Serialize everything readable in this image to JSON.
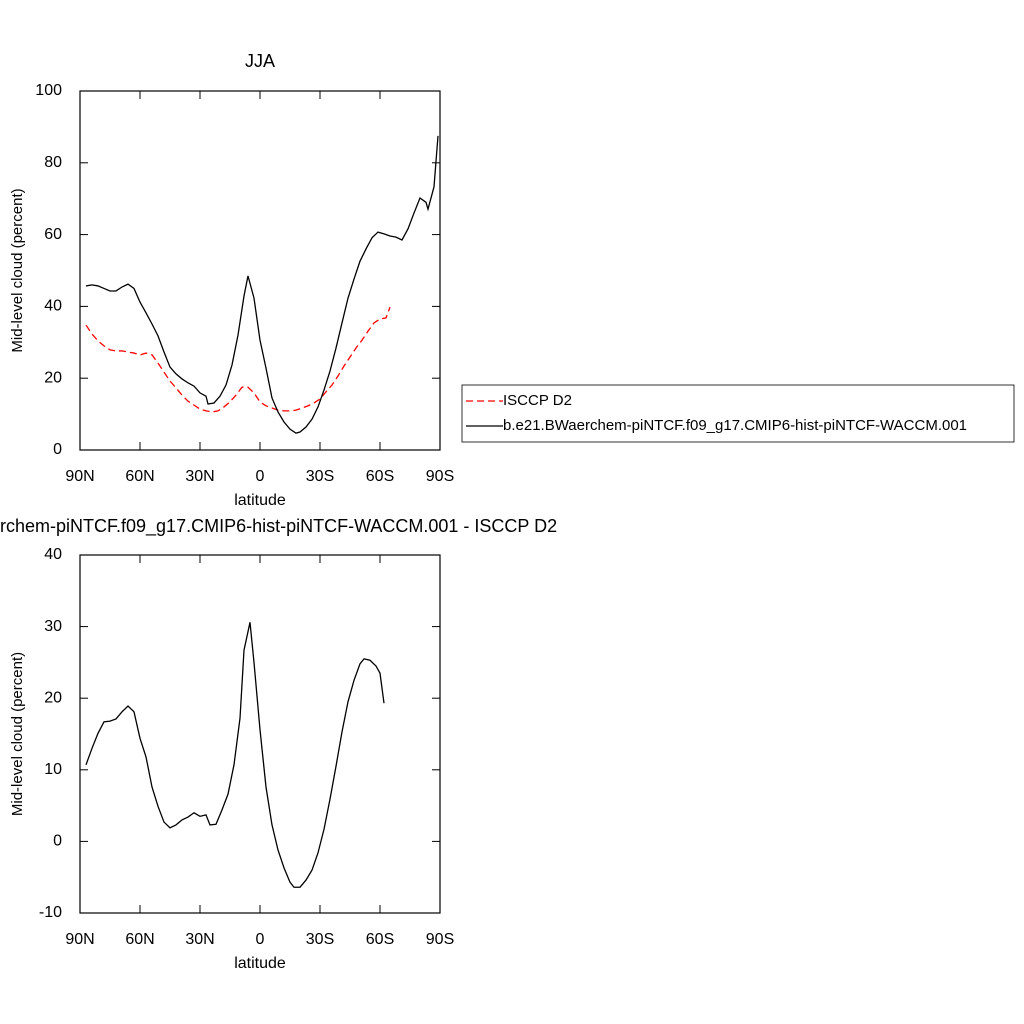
{
  "chart_data": [
    {
      "type": "line",
      "title": "JJA",
      "xlabel": "latitude",
      "ylabel": "Mid-level cloud (percent)",
      "xlim": [
        90,
        -90
      ],
      "ylim": [
        0,
        100
      ],
      "xticks": [
        {
          "value": 90,
          "label": "90N"
        },
        {
          "value": 60,
          "label": "60N"
        },
        {
          "value": 30,
          "label": "30N"
        },
        0,
        {
          "value": -30,
          "label": "30S"
        },
        {
          "value": -60,
          "label": "60S"
        },
        {
          "value": -90,
          "label": "90S"
        }
      ],
      "yticks": [
        0,
        20,
        40,
        60,
        80,
        100
      ],
      "series": [
        {
          "name": "ISCCP D2",
          "color": "#ff0000",
          "dash": true,
          "x": [
            87,
            84,
            81,
            78,
            75,
            72,
            69,
            66,
            63,
            60,
            57,
            54,
            51,
            48,
            45,
            42,
            39,
            36,
            33,
            30,
            27,
            24,
            21,
            18,
            15,
            12,
            9,
            6,
            3,
            0,
            -3,
            -6,
            -9,
            -12,
            -15,
            -18,
            -21,
            -24,
            -27,
            -30,
            -33,
            -36,
            -39,
            -42,
            -45,
            -48,
            -51,
            -54,
            -57,
            -60,
            -63,
            -65
          ],
          "values": [
            34.8,
            32.3,
            30.4,
            29,
            27.9,
            27.6,
            27.6,
            27.3,
            27,
            26.5,
            27,
            26.5,
            24.2,
            21.7,
            19.2,
            17.3,
            15.3,
            13.6,
            12.5,
            11.4,
            10.9,
            10.6,
            10.9,
            12,
            13.4,
            15.3,
            17.5,
            17.5,
            15.9,
            13.4,
            12.3,
            11.7,
            11.1,
            10.9,
            10.9,
            11.1,
            11.7,
            12.3,
            13.1,
            14.2,
            16.2,
            18.1,
            20.6,
            23.4,
            25.9,
            28.4,
            30.6,
            33.1,
            35.4,
            36.5,
            36.8,
            39.8
          ]
        },
        {
          "name": "b.e21.BWaerchem-piNTCF.f09_g17.CMIP6-hist-piNTCF-WACCM.001",
          "color": "#000000",
          "dash": false,
          "x": [
            87,
            84,
            81,
            78,
            75,
            72,
            69,
            66,
            63,
            60,
            57,
            54,
            51,
            48,
            45,
            42,
            39,
            36,
            33,
            30,
            27,
            26,
            23,
            20,
            17,
            14,
            11,
            8,
            6,
            3,
            0,
            -3,
            -6,
            -9,
            -12,
            -15,
            -18,
            -20,
            -23,
            -26,
            -29,
            -32,
            -35,
            -38,
            -41,
            -44,
            -47,
            -50,
            -53,
            -56,
            -59,
            -62,
            -65,
            -68,
            -71,
            -74,
            -77,
            -80,
            -83,
            -84,
            -87,
            -89
          ],
          "values": [
            45.7,
            46,
            45.7,
            45,
            44.3,
            44.3,
            45.4,
            46.2,
            45,
            41.2,
            38.2,
            35.1,
            31.8,
            27.3,
            23.1,
            21.2,
            19.8,
            18.7,
            17.8,
            15.9,
            15,
            12.8,
            13.1,
            15,
            18.1,
            23.7,
            32,
            42.9,
            48.5,
            42.3,
            30.6,
            22.8,
            14.5,
            10.6,
            7.8,
            5.8,
            4.7,
            5,
            6.4,
            8.6,
            12,
            16.7,
            22,
            28.4,
            35.4,
            42.3,
            47.6,
            52.6,
            56,
            59.1,
            60.7,
            60.2,
            59.6,
            59.3,
            58.5,
            61.6,
            66,
            70.2,
            69,
            67.1,
            73.3,
            87.5
          ]
        }
      ]
    },
    {
      "type": "line",
      "title": "rchem-piNTCF.f09_g17.CMIP6-hist-piNTCF-WACCM.001 - ISCCP D2",
      "xlabel": "latitude",
      "ylabel": "Mid-level cloud (percent)",
      "xlim": [
        90,
        -90
      ],
      "ylim": [
        -10,
        40
      ],
      "xticks": [
        {
          "value": 90,
          "label": "90N"
        },
        {
          "value": 60,
          "label": "60N"
        },
        {
          "value": 30,
          "label": "30N"
        },
        0,
        {
          "value": -30,
          "label": "30S"
        },
        {
          "value": -60,
          "label": "60S"
        },
        {
          "value": -90,
          "label": "90S"
        }
      ],
      "yticks": [
        -10,
        0,
        10,
        20,
        30,
        40
      ],
      "series": [
        {
          "color": "#000000",
          "dash": false,
          "x": [
            87,
            84,
            81,
            78,
            75,
            72,
            69,
            66,
            63,
            60,
            57,
            54,
            51,
            48,
            45,
            42,
            39,
            36,
            33,
            30,
            27,
            25,
            22,
            19,
            16,
            13,
            10,
            8,
            5,
            3,
            0,
            -3,
            -6,
            -9,
            -12,
            -15,
            -17,
            -20,
            -23,
            -26,
            -29,
            -32,
            -35,
            -38,
            -41,
            -44,
            -47,
            -50,
            -52,
            -55,
            -58,
            -60,
            -62
          ],
          "values": [
            10.7,
            13,
            15.1,
            16.7,
            16.8,
            17.1,
            18.1,
            18.9,
            18.1,
            14.4,
            11.8,
            7.6,
            4.9,
            2.7,
            1.9,
            2.3,
            3,
            3.4,
            4,
            3.5,
            3.7,
            2.3,
            2.4,
            4.4,
            6.6,
            10.7,
            17.2,
            26.7,
            30.6,
            25,
            15.6,
            7.6,
            2.3,
            -1.2,
            -3.7,
            -5.7,
            -6.4,
            -6.4,
            -5.4,
            -4,
            -1.6,
            1.7,
            5.9,
            10.5,
            15.3,
            19.5,
            22.5,
            24.8,
            25.5,
            25.3,
            24.5,
            23.5,
            19.3
          ]
        }
      ]
    }
  ]
}
